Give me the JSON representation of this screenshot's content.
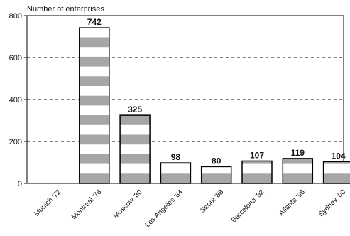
{
  "chart_data": {
    "type": "bar",
    "ylabel": "Number of enterprises",
    "categories": [
      "Munich '72",
      "Montreal '76",
      "Moscow '80",
      "Los Angeles '84",
      "Seoul '88",
      "Barcelona '92",
      "Atlanta '96",
      "Sydney '00"
    ],
    "values": [
      0,
      742,
      325,
      98,
      80,
      107,
      119,
      104
    ],
    "value_labels": [
      "",
      "742",
      "325",
      "98",
      "80",
      "107",
      "119",
      "104"
    ],
    "ylim": [
      0,
      800
    ],
    "yticks": [
      "0",
      "200",
      "400",
      "600",
      "800"
    ],
    "grid": "dashed horizontal",
    "colors": {
      "stripe": "#a6a6a6",
      "bar_fill": "#ffffff",
      "outline": "#000000"
    }
  }
}
